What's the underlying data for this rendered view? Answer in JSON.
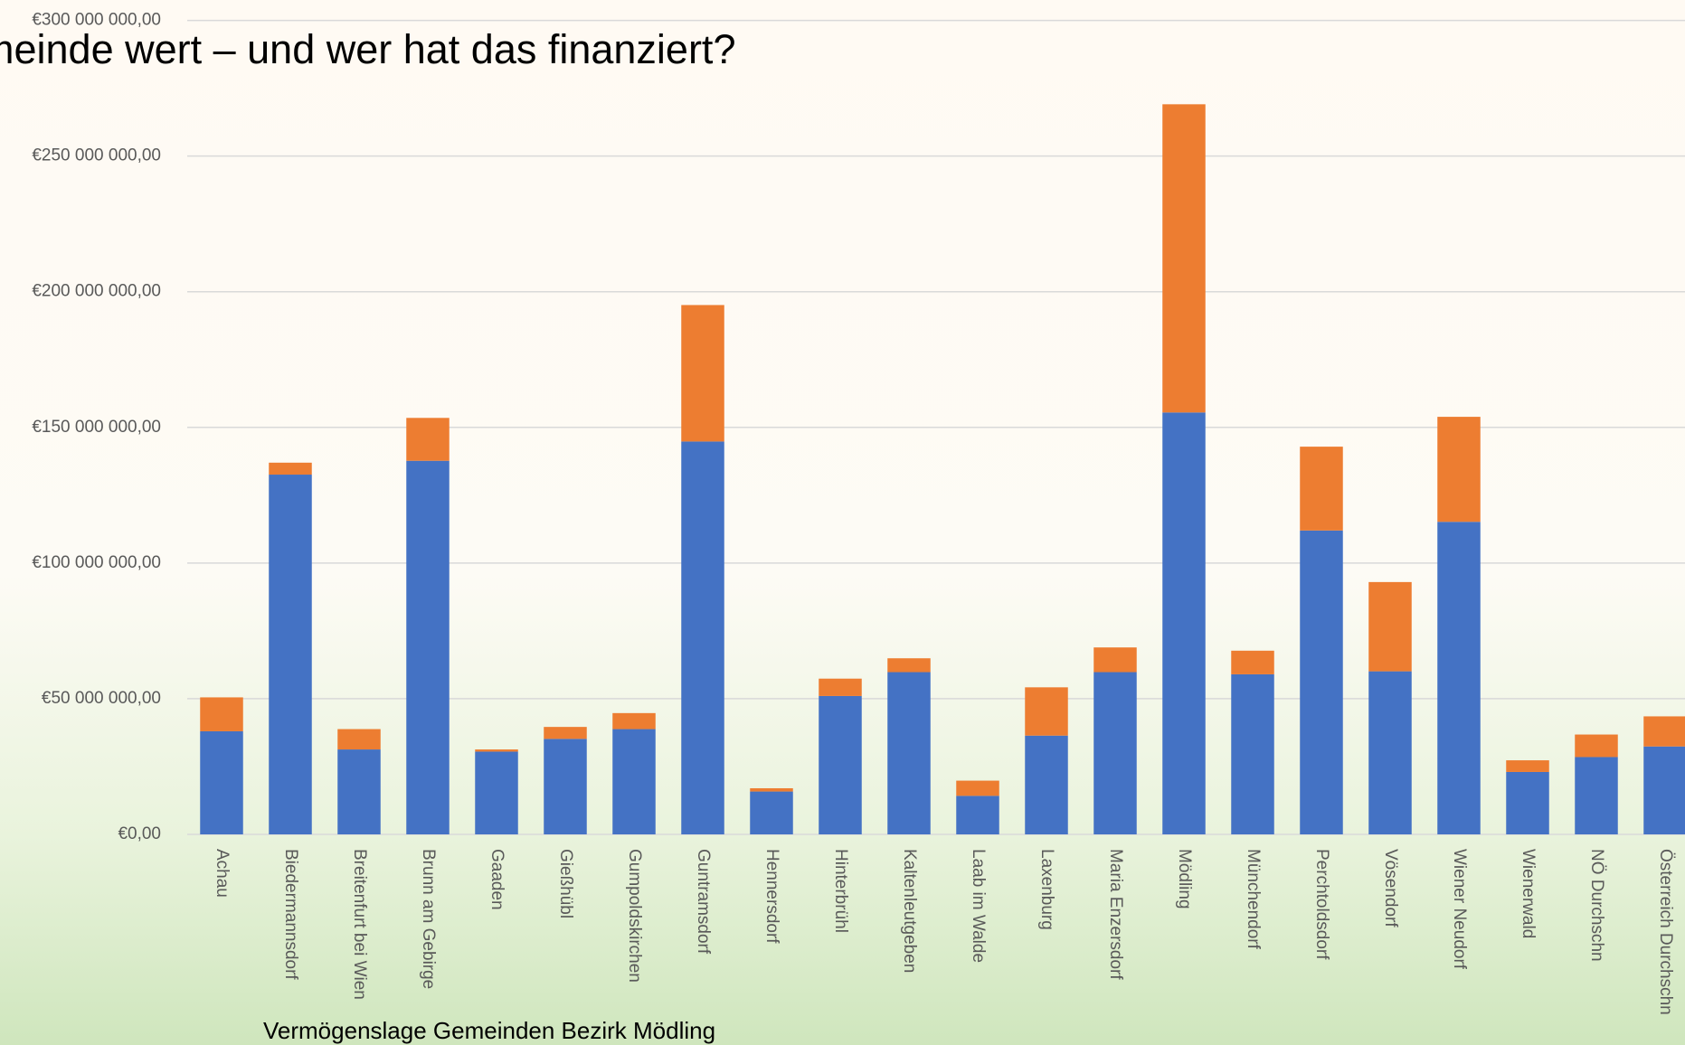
{
  "chart_data": {
    "type": "stacked_bar",
    "title": "meinde wert – und wer hat das finanziert?",
    "x_label": "Vermögenslage Gemeinden Bezirk Mödling",
    "categories": [
      "Achau",
      "Biedermannsdorf",
      "Breitenfurt bei Wien",
      "Brunn am Gebirge",
      "Gaaden",
      "Gießhübl",
      "Gumpoldskirchen",
      "Guntramsdorf",
      "Hennersdorf",
      "Hinterbrühl",
      "Kaltenleutgeben",
      "Laab im Walde",
      "Laxenburg",
      "Maria Enzersdorf",
      "Mödling",
      "Münchendorf",
      "Perchtoldsdorf",
      "Vösendorf",
      "Wiener Neudorf",
      "Wienerwald",
      "NÖ Durchschn",
      "Österreich Durchschn"
    ],
    "series": [
      {
        "color": "#4472c4",
        "values": [
          38000000,
          132600000,
          31300000,
          137700000,
          30500000,
          35200000,
          38800000,
          144800000,
          15800000,
          51000000,
          59800000,
          14200000,
          36400000,
          59800000,
          155500000,
          59000000,
          112000000,
          60100000,
          115200000,
          23000000,
          28500000,
          32400000
        ]
      },
      {
        "color": "#ed7d31",
        "values": [
          12500000,
          4400000,
          7500000,
          15800000,
          800000,
          4400000,
          5900000,
          50300000,
          1200000,
          6400000,
          5100000,
          5600000,
          17800000,
          9100000,
          113600000,
          8700000,
          30900000,
          32900000,
          38700000,
          4300000,
          8300000,
          11100000
        ]
      }
    ],
    "ylim": [
      0,
      300000000
    ],
    "yticks": [
      {
        "value": 0,
        "label": "€0,00"
      },
      {
        "value": 50000000,
        "label": "€50 000 000,00"
      },
      {
        "value": 100000000,
        "label": "€100 000 000,00"
      },
      {
        "value": 150000000,
        "label": "€150 000 000,00"
      },
      {
        "value": 200000000,
        "label": "€200 000 000,00"
      },
      {
        "value": 250000000,
        "label": "€250 000 000,00"
      },
      {
        "value": 300000000,
        "label": "€300 000 000,00"
      }
    ],
    "grid": true
  }
}
